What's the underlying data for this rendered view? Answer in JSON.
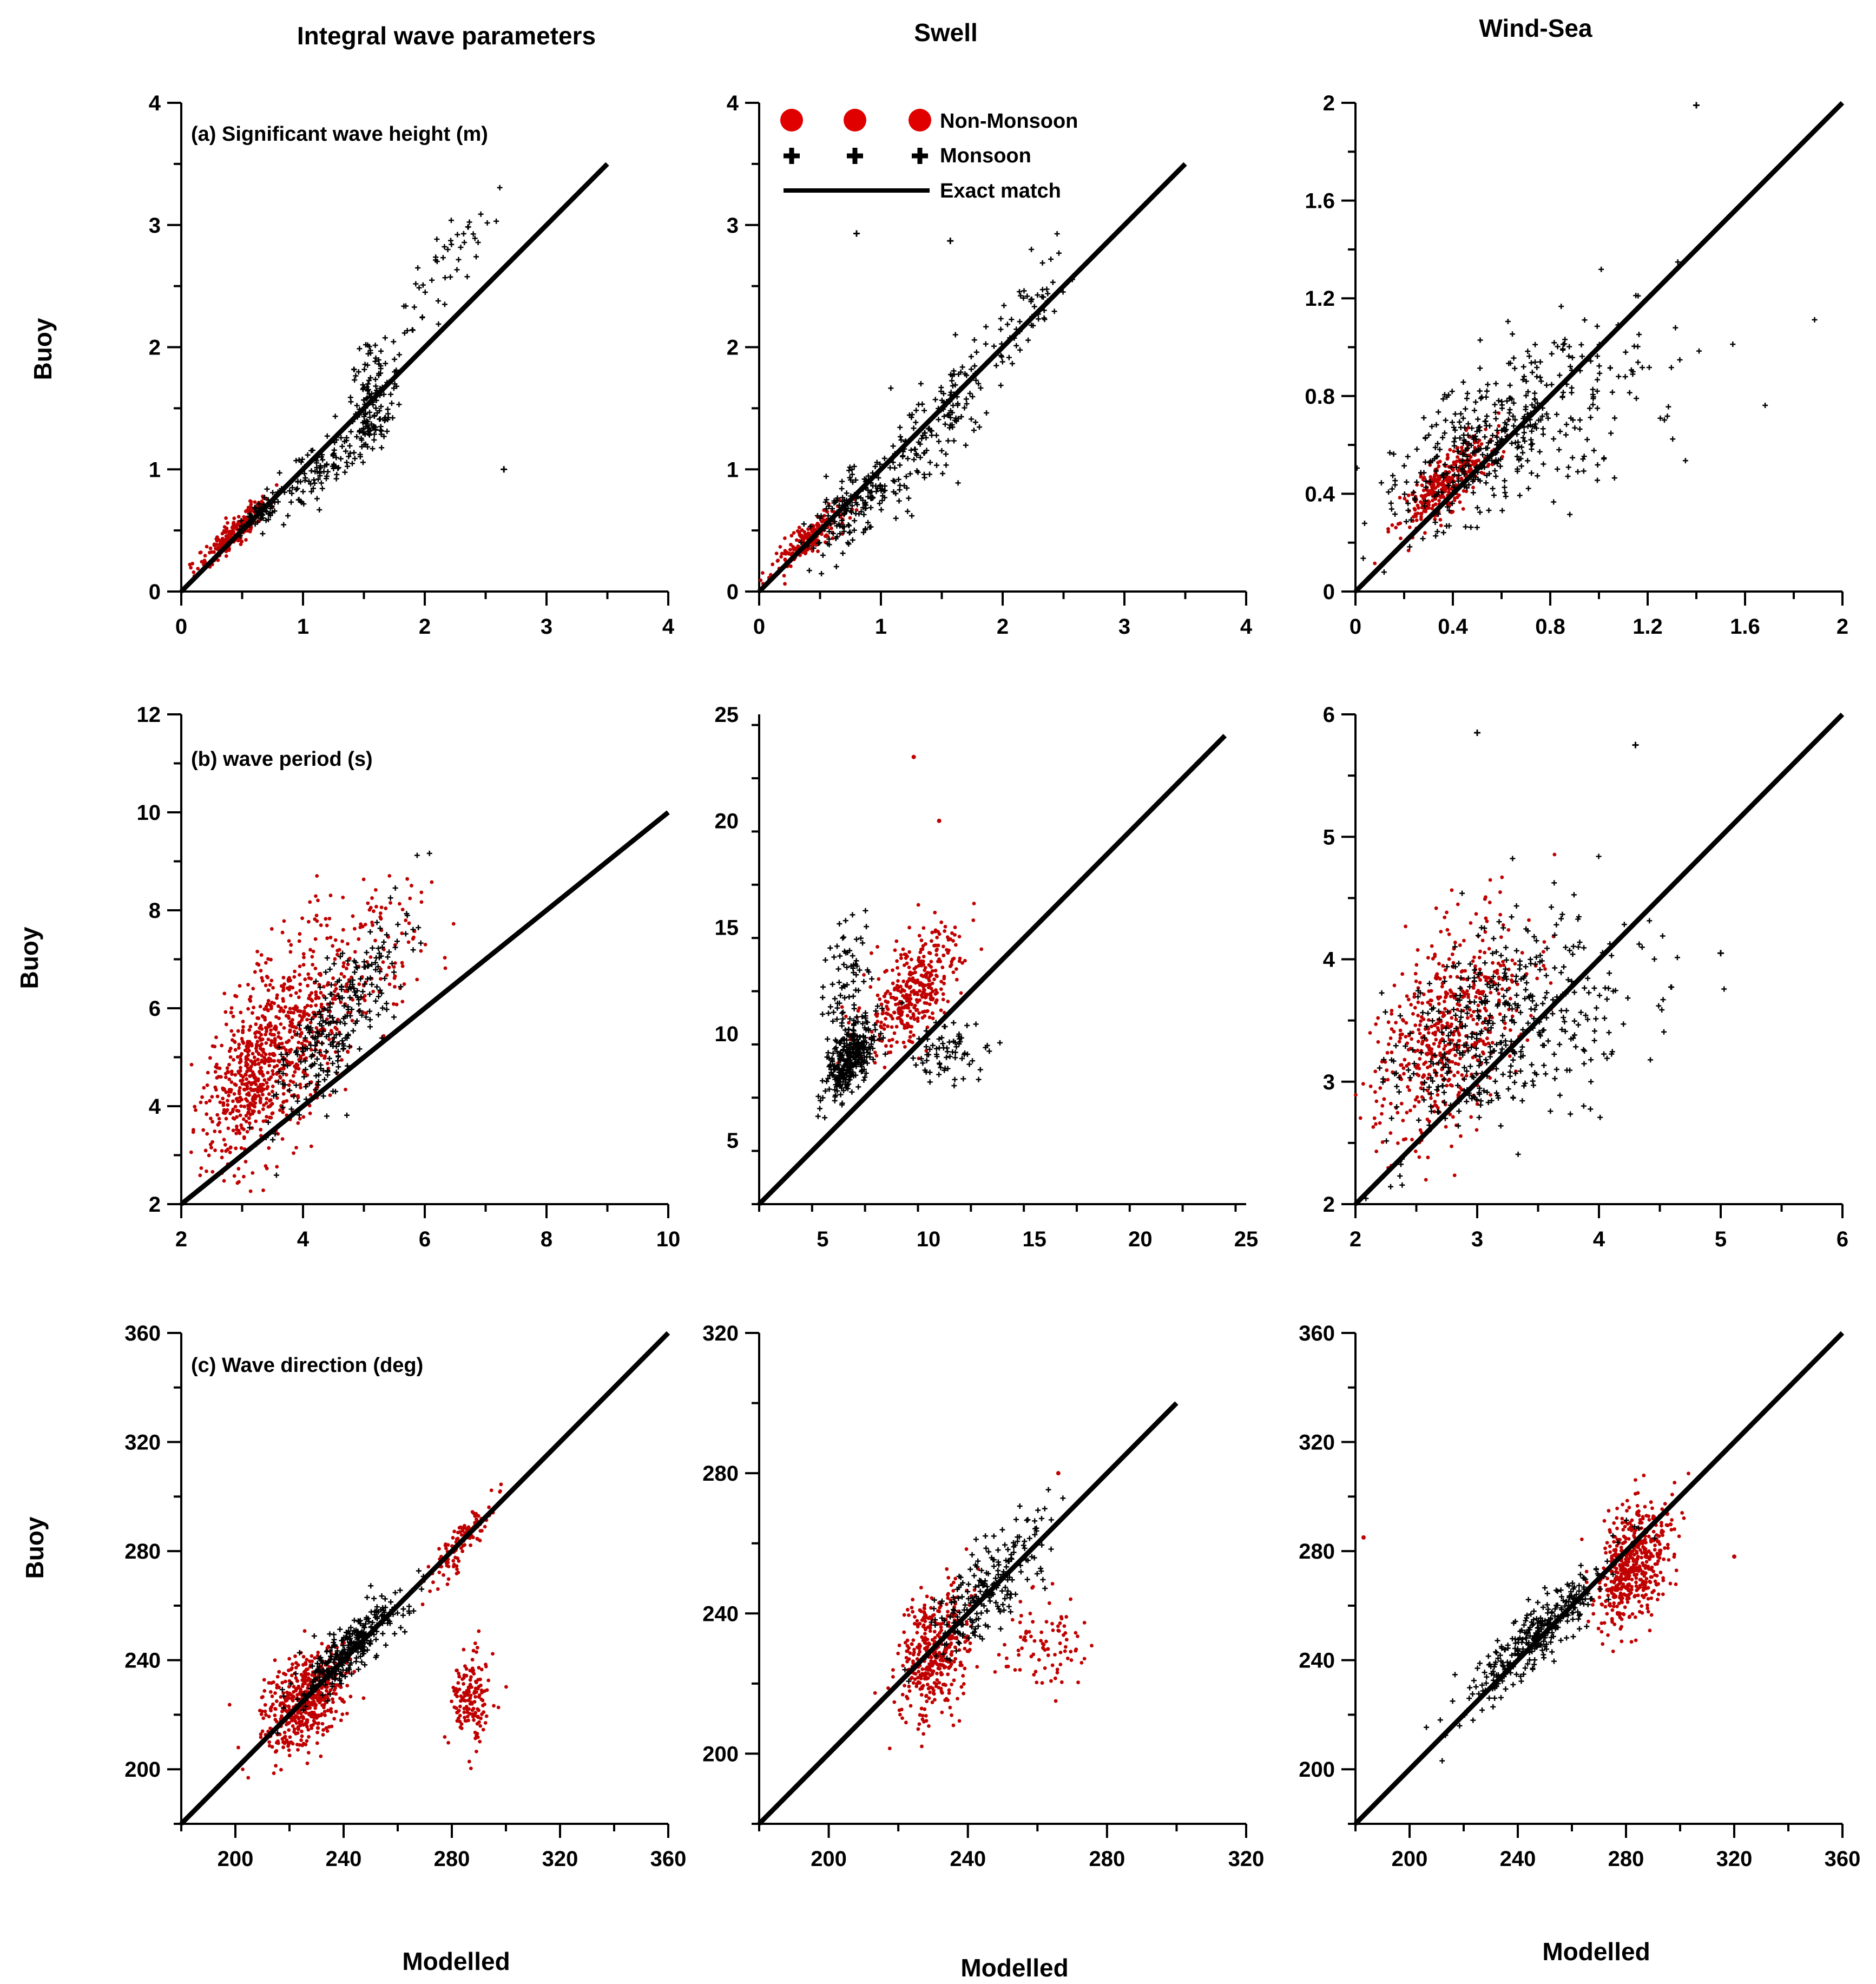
{
  "figure": {
    "column_titles": [
      "Integral wave parameters",
      "Swell",
      "Wind-Sea"
    ],
    "ylabel": "Buoy",
    "xlabel": "Modelled",
    "colors": {
      "non_monsoon": "#c00000",
      "legend_non_monsoon": "#e00000",
      "monsoon": "#000000",
      "exact_match": "#000000"
    },
    "legend": {
      "non_monsoon": "Non-Monsoon",
      "monsoon": "Monsoon",
      "exact_match": "Exact match"
    },
    "row_labels": [
      "(a) Significant wave height (m)",
      "(b) wave period (s)",
      "(c) Wave direction (deg)"
    ]
  },
  "chart_data": [
    {
      "type": "scatter",
      "row": 0,
      "col": 0,
      "title": "Integral wave parameters",
      "panel_label": "(a) Significant wave height (m)",
      "xlim": [
        0,
        4
      ],
      "ylim": [
        0,
        4
      ],
      "xticks": [
        0,
        1,
        2,
        3,
        4
      ],
      "yticks": [
        0,
        1,
        2,
        3,
        4
      ],
      "xticklabels": [
        "0",
        "1",
        "2",
        "3",
        "4"
      ],
      "yticklabels": [
        "0",
        "1",
        "2",
        "3",
        "4"
      ],
      "ylabel": "Buoy",
      "xlabel": "",
      "line": [
        [
          0,
          0
        ],
        [
          3.5,
          3.5
        ]
      ],
      "clusters": [
        {
          "series": "Non-Monsoon",
          "n": 260,
          "cx": 0.45,
          "cy": 0.5,
          "sx": 0.15,
          "sy": 0.15,
          "rho": 0.92
        },
        {
          "series": "Monsoon",
          "n": 70,
          "cx": 0.62,
          "cy": 0.62,
          "sx": 0.08,
          "sy": 0.08,
          "rho": 0.85
        },
        {
          "series": "Monsoon",
          "n": 110,
          "cx": 1.15,
          "cy": 1.0,
          "sx": 0.2,
          "sy": 0.18,
          "rho": 0.8
        },
        {
          "series": "Monsoon",
          "n": 110,
          "cx": 1.55,
          "cy": 1.65,
          "sx": 0.12,
          "sy": 0.25,
          "rho": 0.5
        },
        {
          "series": "Monsoon",
          "n": 45,
          "cx": 1.6,
          "cy": 1.35,
          "sx": 0.08,
          "sy": 0.08,
          "rho": 0.3
        },
        {
          "series": "Monsoon",
          "n": 45,
          "cx": 2.2,
          "cy": 2.7,
          "sx": 0.2,
          "sy": 0.3,
          "rho": 0.8
        }
      ],
      "points": [
        {
          "series": "Monsoon",
          "x": 2.65,
          "y": 1.0
        }
      ]
    },
    {
      "type": "scatter",
      "row": 0,
      "col": 1,
      "title": "Swell",
      "xlim": [
        0,
        4
      ],
      "ylim": [
        0,
        4
      ],
      "xticks": [
        0,
        1,
        2,
        3,
        4
      ],
      "yticks": [
        0,
        1,
        2,
        3,
        4
      ],
      "xticklabels": [
        "0",
        "1",
        "2",
        "3",
        "4"
      ],
      "yticklabels": [
        "0",
        "1",
        "2",
        "3",
        "4"
      ],
      "xlabel": "",
      "line": [
        [
          0,
          0
        ],
        [
          3.5,
          3.5
        ]
      ],
      "legend": true,
      "clusters": [
        {
          "series": "Non-Monsoon",
          "n": 230,
          "cx": 0.4,
          "cy": 0.42,
          "sx": 0.15,
          "sy": 0.13,
          "rho": 0.85
        },
        {
          "series": "Monsoon",
          "n": 170,
          "cx": 0.8,
          "cy": 0.72,
          "sx": 0.2,
          "sy": 0.2,
          "rho": 0.6
        },
        {
          "series": "Monsoon",
          "n": 150,
          "cx": 1.45,
          "cy": 1.35,
          "sx": 0.25,
          "sy": 0.3,
          "rho": 0.75
        },
        {
          "series": "Monsoon",
          "n": 55,
          "cx": 2.2,
          "cy": 2.3,
          "sx": 0.18,
          "sy": 0.25,
          "rho": 0.8
        }
      ],
      "points": [
        {
          "series": "Monsoon",
          "x": 0.8,
          "y": 2.93
        },
        {
          "series": "Monsoon",
          "x": 1.57,
          "y": 2.87
        }
      ]
    },
    {
      "type": "scatter",
      "row": 0,
      "col": 2,
      "title": "Wind-Sea",
      "xlim": [
        0,
        2
      ],
      "ylim": [
        0,
        2
      ],
      "xticks": [
        0,
        0.4,
        0.8,
        1.2,
        1.6,
        2
      ],
      "yticks": [
        0,
        0.4,
        0.8,
        1.2,
        1.6,
        2
      ],
      "xticklabels": [
        "0",
        "0.4",
        "0.8",
        "1.2",
        "1.6",
        "2"
      ],
      "yticklabels": [
        "0",
        "0.4",
        "0.8",
        "1.2",
        "1.6",
        "2"
      ],
      "xlabel": "",
      "line": [
        [
          0,
          0
        ],
        [
          2,
          2
        ]
      ],
      "clusters": [
        {
          "series": "Monsoon",
          "n": 360,
          "cx": 0.55,
          "cy": 0.6,
          "sx": 0.2,
          "sy": 0.2,
          "rho": 0.65
        },
        {
          "series": "Monsoon",
          "n": 90,
          "cx": 1.0,
          "cy": 0.82,
          "sx": 0.22,
          "sy": 0.2,
          "rho": 0.3
        },
        {
          "series": "Non-Monsoon",
          "n": 360,
          "cx": 0.38,
          "cy": 0.45,
          "sx": 0.1,
          "sy": 0.1,
          "rho": 0.8
        }
      ],
      "points": [
        {
          "series": "Monsoon",
          "x": 1.4,
          "y": 1.99
        }
      ]
    },
    {
      "type": "scatter",
      "row": 1,
      "col": 0,
      "panel_label": "(b) wave period (s)",
      "xlim": [
        2,
        10
      ],
      "ylim": [
        2,
        12
      ],
      "xticks": [
        2,
        4,
        6,
        8,
        10
      ],
      "yticks": [
        2,
        4,
        6,
        8,
        10,
        12
      ],
      "xticklabels": [
        "2",
        "4",
        "6",
        "8",
        "10"
      ],
      "yticklabels": [
        "2",
        "4",
        "6",
        "8",
        "10",
        "12"
      ],
      "ylabel": "Buoy",
      "xlabel": "",
      "line": [
        [
          2,
          2
        ],
        [
          10,
          10
        ]
      ],
      "clusters": [
        {
          "series": "Non-Monsoon",
          "n": 700,
          "cx": 3.6,
          "cy": 5.3,
          "sx": 0.65,
          "sy": 1.2,
          "rho": 0.6
        },
        {
          "series": "Monsoon",
          "n": 260,
          "cx": 4.6,
          "cy": 5.8,
          "sx": 0.55,
          "sy": 1.0,
          "rho": 0.8
        },
        {
          "series": "Non-Monsoon",
          "n": 160,
          "cx": 3.1,
          "cy": 4.4,
          "sx": 0.3,
          "sy": 0.8,
          "rho": 0.5
        },
        {
          "series": "Non-Monsoon",
          "n": 90,
          "cx": 5.2,
          "cy": 7.0,
          "sx": 0.6,
          "sy": 0.9,
          "rho": 0.4
        }
      ],
      "points": []
    },
    {
      "type": "scatter",
      "row": 1,
      "col": 1,
      "xlim": [
        2,
        25
      ],
      "ylim": [
        2,
        25
      ],
      "xticks": [
        5,
        10,
        15,
        20,
        25
      ],
      "yticks": [
        5,
        10,
        15,
        20,
        25
      ],
      "xticklabels": [
        "5",
        "10",
        "15",
        "20",
        "25"
      ],
      "yticklabels": [
        "5",
        "10",
        "15",
        "20",
        "25"
      ],
      "xlabel": "",
      "line": [
        [
          2,
          2
        ],
        [
          24,
          24
        ]
      ],
      "clusters": [
        {
          "series": "Monsoon",
          "n": 320,
          "cx": 6.3,
          "cy": 8.8,
          "sx": 0.6,
          "sy": 0.9,
          "rho": 0.6
        },
        {
          "series": "Monsoon",
          "n": 80,
          "cx": 6.2,
          "cy": 12.5,
          "sx": 0.5,
          "sy": 1.6,
          "rho": 0.2
        },
        {
          "series": "Non-Monsoon",
          "n": 380,
          "cx": 9.3,
          "cy": 12.0,
          "sx": 1.2,
          "sy": 1.5,
          "rho": 0.65
        },
        {
          "series": "Monsoon",
          "n": 70,
          "cx": 10.8,
          "cy": 9.0,
          "sx": 1.0,
          "sy": 0.7,
          "rho": 0.2
        }
      ],
      "points": [
        {
          "series": "Non-Monsoon",
          "x": 9.3,
          "y": 23.0
        },
        {
          "series": "Non-Monsoon",
          "x": 10.5,
          "y": 20.0
        }
      ]
    },
    {
      "type": "scatter",
      "row": 1,
      "col": 2,
      "xlim": [
        2,
        6
      ],
      "ylim": [
        2,
        6
      ],
      "xticks": [
        2,
        3,
        4,
        5,
        6
      ],
      "yticks": [
        2,
        3,
        4,
        5,
        6
      ],
      "xticklabels": [
        "2",
        "3",
        "4",
        "5",
        "6"
      ],
      "yticklabels": [
        "2",
        "3",
        "4",
        "5",
        "6"
      ],
      "xlabel": "",
      "line": [
        [
          2,
          2
        ],
        [
          6,
          6
        ]
      ],
      "clusters": [
        {
          "series": "Non-Monsoon",
          "n": 560,
          "cx": 2.75,
          "cy": 3.4,
          "sx": 0.3,
          "sy": 0.45,
          "rho": 0.5
        },
        {
          "series": "Monsoon",
          "n": 360,
          "cx": 3.1,
          "cy": 3.45,
          "sx": 0.38,
          "sy": 0.45,
          "rho": 0.45
        },
        {
          "series": "Monsoon",
          "n": 90,
          "cx": 3.85,
          "cy": 3.55,
          "sx": 0.35,
          "sy": 0.4,
          "rho": 0.3
        }
      ],
      "points": [
        {
          "series": "Monsoon",
          "x": 4.3,
          "y": 5.75
        },
        {
          "series": "Monsoon",
          "x": 5.0,
          "y": 4.05
        },
        {
          "series": "Monsoon",
          "x": 3.0,
          "y": 5.85
        }
      ]
    },
    {
      "type": "scatter",
      "row": 2,
      "col": 0,
      "panel_label": "(c) Wave direction (deg)",
      "xlim": [
        180,
        360
      ],
      "ylim": [
        180,
        360
      ],
      "xticks": [
        200,
        240,
        280,
        320,
        360
      ],
      "yticks": [
        200,
        240,
        280,
        320,
        360
      ],
      "xticklabels": [
        "200",
        "240",
        "280",
        "320",
        "360"
      ],
      "yticklabels": [
        "200",
        "240",
        "280",
        "320",
        "360"
      ],
      "ylabel": "Buoy",
      "xlabel": "Modelled",
      "line": [
        [
          180,
          180
        ],
        [
          360,
          360
        ]
      ],
      "clusters": [
        {
          "series": "Non-Monsoon",
          "n": 520,
          "cx": 225,
          "cy": 225,
          "sx": 8,
          "sy": 9,
          "rho": 0.4
        },
        {
          "series": "Monsoon",
          "n": 300,
          "cx": 243,
          "cy": 245,
          "sx": 10,
          "sy": 10,
          "rho": 0.85
        },
        {
          "series": "Non-Monsoon",
          "n": 150,
          "cx": 287,
          "cy": 226,
          "sx": 4,
          "sy": 9,
          "rho": 0.1
        },
        {
          "series": "Non-Monsoon",
          "n": 120,
          "cx": 283,
          "cy": 283,
          "sx": 6,
          "sy": 7,
          "rho": 0.8
        }
      ],
      "points": [
        {
          "series": "Non-Monsoon",
          "x": 221,
          "y": 218
        }
      ]
    },
    {
      "type": "scatter",
      "row": 2,
      "col": 1,
      "xlim": [
        180,
        320
      ],
      "ylim": [
        180,
        320
      ],
      "xticks": [
        200,
        240,
        280,
        320
      ],
      "yticks": [
        200,
        240,
        280,
        320
      ],
      "xticklabels": [
        "200",
        "240",
        "280",
        "320"
      ],
      "yticklabels": [
        "200",
        "240",
        "280",
        "320"
      ],
      "xlabel": "Modelled",
      "line": [
        [
          180,
          180
        ],
        [
          300,
          300
        ]
      ],
      "clusters": [
        {
          "series": "Non-Monsoon",
          "n": 420,
          "cx": 230,
          "cy": 228,
          "sx": 5,
          "sy": 9,
          "rho": 0.3
        },
        {
          "series": "Monsoon",
          "n": 220,
          "cx": 246,
          "cy": 248,
          "sx": 8,
          "sy": 10,
          "rho": 0.75
        },
        {
          "series": "Non-Monsoon",
          "n": 90,
          "cx": 262,
          "cy": 232,
          "sx": 6,
          "sy": 8,
          "rho": 0.1
        }
      ],
      "points": [
        {
          "series": "Non-Monsoon",
          "x": 266,
          "y": 280
        }
      ]
    },
    {
      "type": "scatter",
      "row": 2,
      "col": 2,
      "xlim": [
        180,
        360
      ],
      "ylim": [
        180,
        360
      ],
      "xticks": [
        200,
        240,
        280,
        320,
        360
      ],
      "yticks": [
        200,
        240,
        280,
        320,
        360
      ],
      "xticklabels": [
        "200",
        "240",
        "280",
        "320",
        "360"
      ],
      "yticklabels": [
        "200",
        "240",
        "280",
        "320",
        "360"
      ],
      "xlabel": "Modelled",
      "line": [
        [
          180,
          180
        ],
        [
          360,
          360
        ]
      ],
      "clusters": [
        {
          "series": "Monsoon",
          "n": 320,
          "cx": 248,
          "cy": 250,
          "sx": 14,
          "sy": 14,
          "rho": 0.9
        },
        {
          "series": "Non-Monsoon",
          "n": 520,
          "cx": 283,
          "cy": 275,
          "sx": 7,
          "sy": 11,
          "rho": 0.4
        }
      ],
      "points": [
        {
          "series": "Non-Monsoon",
          "x": 320,
          "y": 278
        },
        {
          "series": "Non-Monsoon",
          "x": 183,
          "y": 285
        }
      ]
    }
  ]
}
